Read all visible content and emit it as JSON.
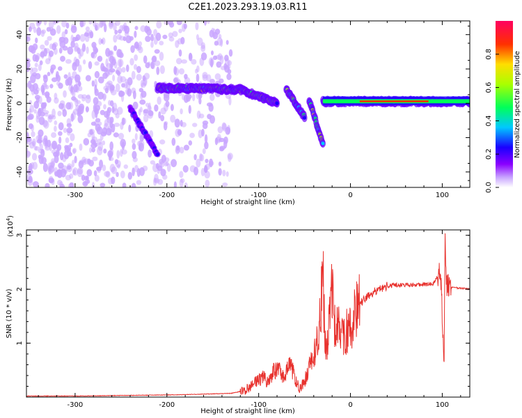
{
  "title": "C2E1.2023.293.19.03.R11",
  "chart_data": [
    {
      "type": "heatmap",
      "xlabel": "Height of straight line (km)",
      "ylabel": "Frequency (Hz)",
      "xlim": [
        -353,
        130
      ],
      "ylim": [
        -49,
        48
      ],
      "xticks": [
        -300,
        -200,
        -100,
        0,
        100
      ],
      "xtick_labels": [
        "-300",
        "-200",
        "-100",
        "0",
        "100"
      ],
      "yticks": [
        -40,
        -20,
        0,
        20,
        40
      ],
      "ytick_labels": [
        "-40",
        "-20",
        "0",
        "20",
        "40"
      ],
      "grid": false,
      "colorbar": {
        "label": "Normalized spectral amplitude",
        "range": [
          0,
          1
        ],
        "ticks": [
          0.0,
          0.2,
          0.4,
          0.6,
          0.8
        ],
        "tick_labels": [
          "0.0",
          "0.2",
          "0.4",
          "0.6",
          "0.8"
        ],
        "colors": [
          "#ffffff",
          "#c9a6ff",
          "#8a00ff",
          "#1a00ff",
          "#00c8ff",
          "#00ff5a",
          "#aaff00",
          "#ffdd00",
          "#ff3000",
          "#ff0060"
        ]
      },
      "features": [
        {
          "x": [
            -240,
            -210
          ],
          "y": [
            -3,
            -30
          ]
        },
        {
          "x": [
            -210,
            -120
          ],
          "y": [
            9,
            8
          ]
        },
        {
          "x": [
            -120,
            -80
          ],
          "y": [
            8,
            0
          ]
        },
        {
          "x": [
            -70,
            -50
          ],
          "y": [
            8,
            -8
          ]
        },
        {
          "x": [
            -45,
            -30
          ],
          "y": [
            2,
            -24
          ]
        },
        {
          "x": [
            -30,
            130
          ],
          "y": [
            1,
            1
          ]
        }
      ]
    },
    {
      "type": "line",
      "xlabel": "Height of straight line (km)",
      "ylabel": "SNR (10 * v/v)",
      "y_multiplier": "(x10^4)",
      "xlim": [
        -353,
        130
      ],
      "ylim": [
        0,
        3.1
      ],
      "xticks": [
        -300,
        -200,
        -100,
        0,
        100
      ],
      "xtick_labels": [
        "-300",
        "-200",
        "-100",
        "0",
        "100"
      ],
      "yticks": [
        1,
        2,
        3
      ],
      "ytick_labels": [
        "1",
        "2",
        "3"
      ],
      "grid": false,
      "line_color": "#e8322e",
      "x": [
        -353,
        -300,
        -250,
        -200,
        -170,
        -150,
        -130,
        -115,
        -105,
        -95,
        -90,
        -85,
        -80,
        -75,
        -70,
        -65,
        -60,
        -55,
        -50,
        -45,
        -40,
        -35,
        -32,
        -30,
        -28,
        -26,
        -22,
        -20,
        -18,
        -15,
        -10,
        -5,
        0,
        5,
        10,
        20,
        30,
        40,
        50,
        60,
        70,
        80,
        90,
        95,
        98,
        100,
        102,
        103,
        104,
        105,
        106,
        108,
        110,
        120,
        130
      ],
      "y": [
        0.02,
        0.02,
        0.03,
        0.04,
        0.05,
        0.06,
        0.07,
        0.12,
        0.25,
        0.38,
        0.28,
        0.45,
        0.55,
        0.4,
        0.48,
        0.6,
        0.32,
        0.15,
        0.3,
        0.55,
        0.75,
        1.1,
        1.8,
        2.35,
        1.3,
        0.8,
        1.6,
        2.2,
        1.2,
        1.45,
        1.05,
        1.2,
        1.3,
        1.55,
        1.72,
        1.88,
        2.0,
        2.06,
        2.08,
        2.08,
        2.08,
        2.09,
        2.1,
        2.25,
        2.4,
        1.5,
        0.75,
        3.1,
        2.2,
        2.05,
        2.1,
        2.02,
        2.03,
        2.02,
        2.0
      ]
    }
  ]
}
